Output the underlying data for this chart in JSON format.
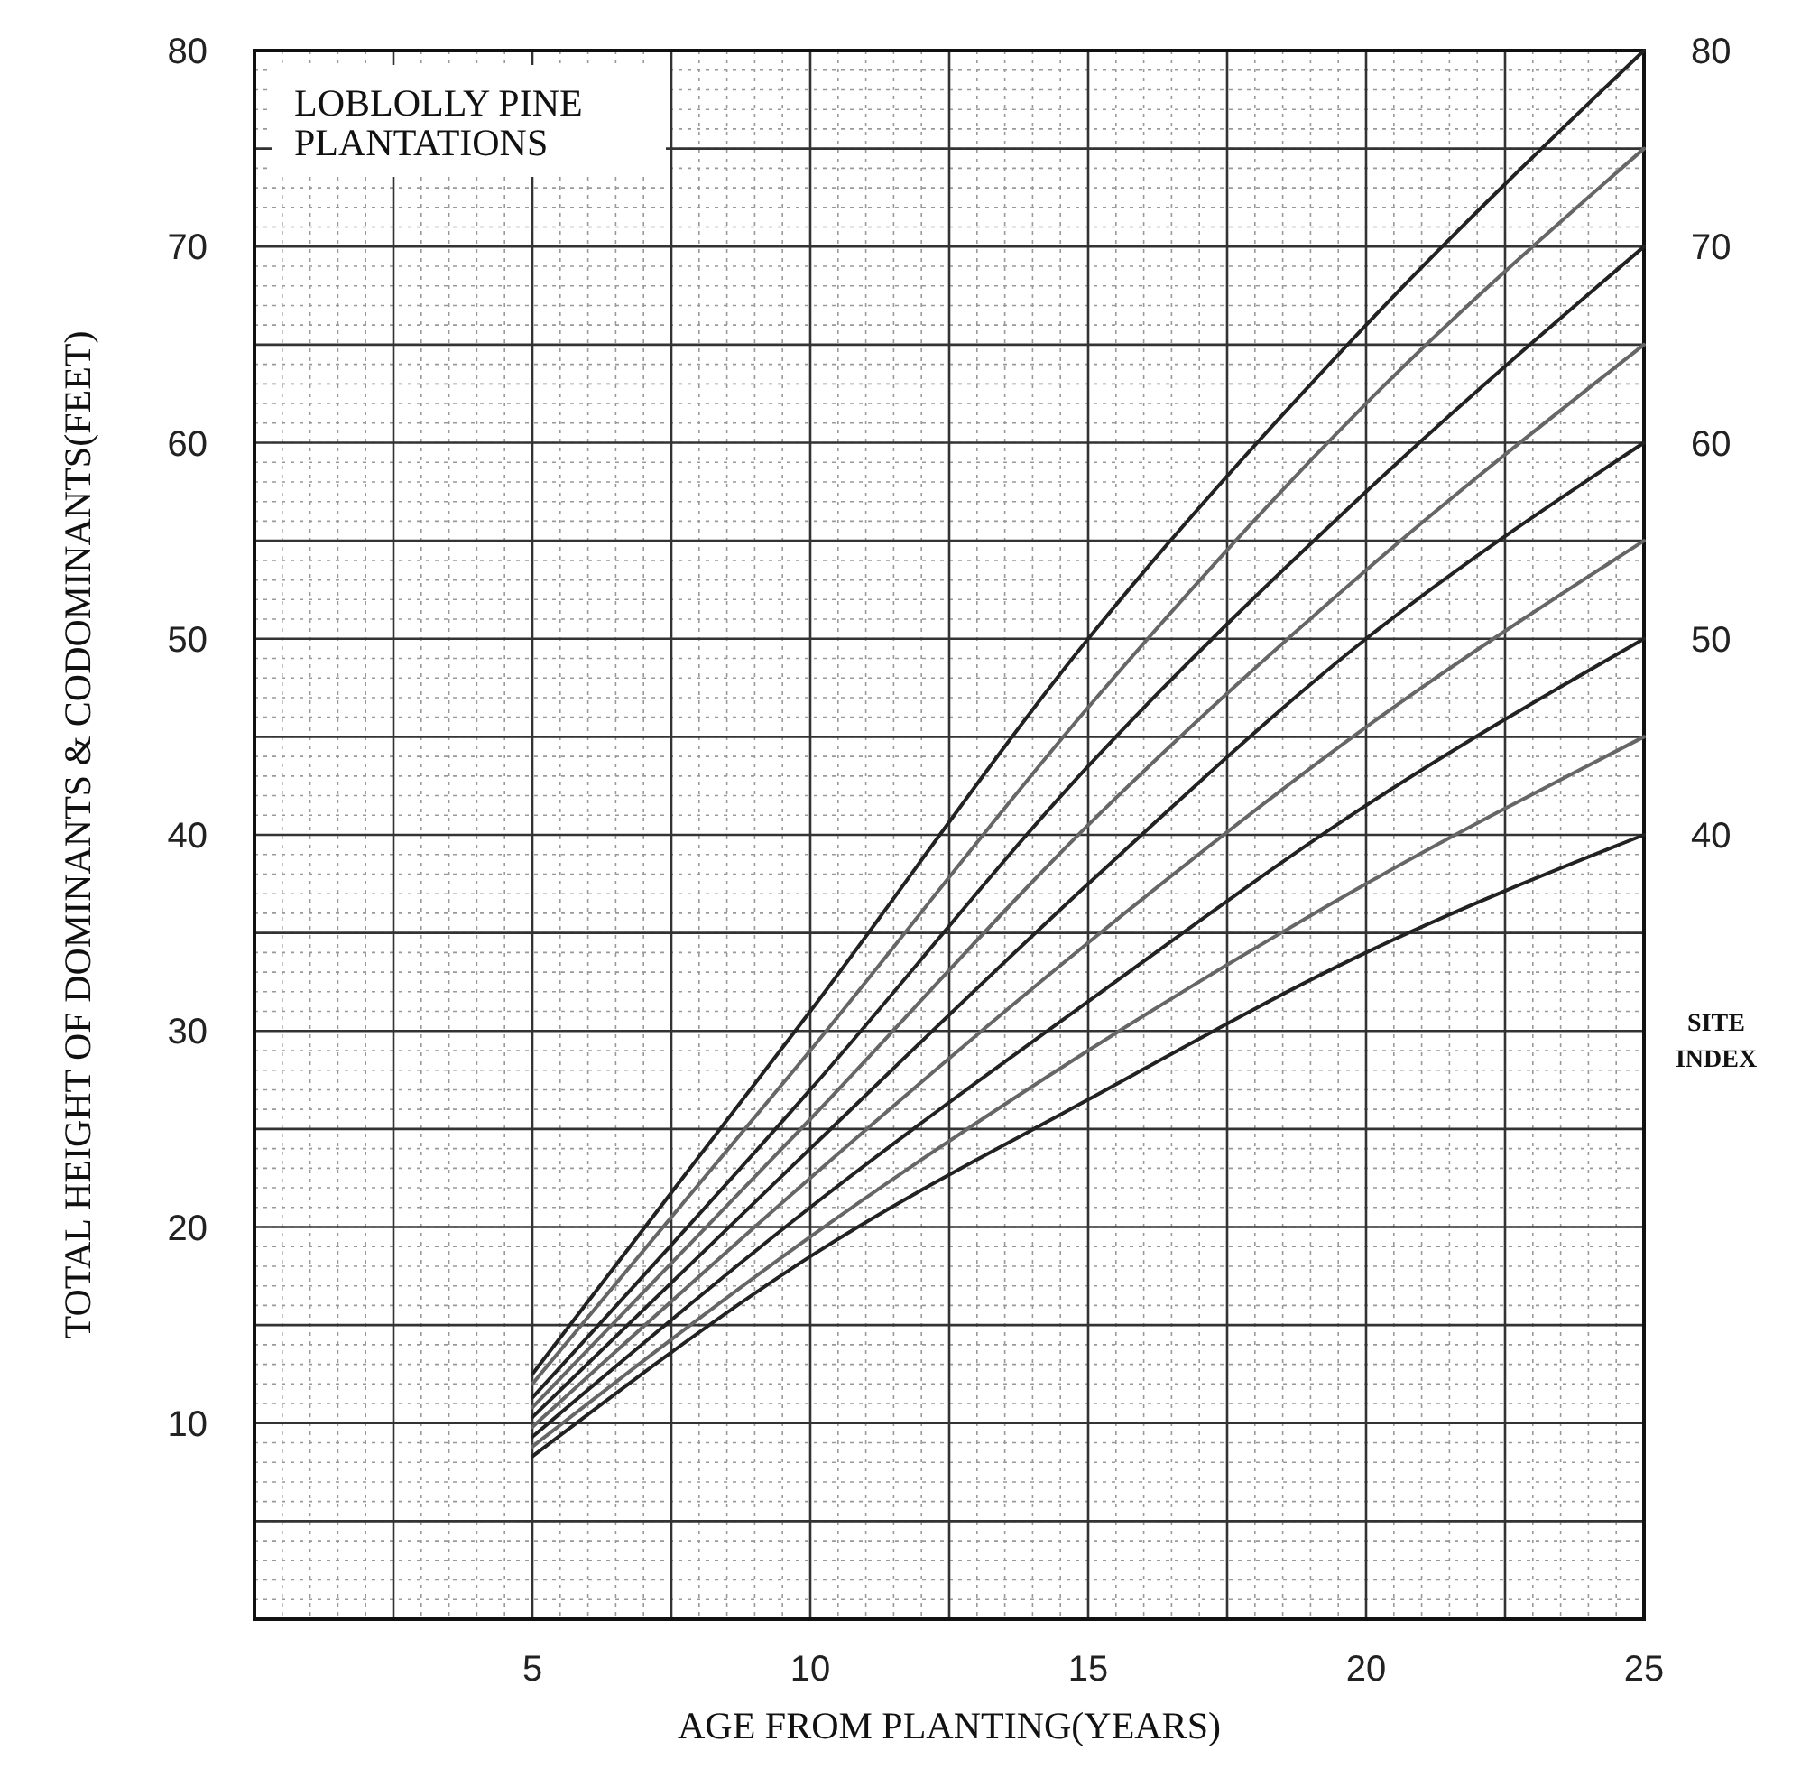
{
  "chart_data": {
    "type": "line",
    "title": "LOBLOLLY PINE\nPLANTATIONS",
    "xlabel": "AGE FROM PLANTING(YEARS)",
    "ylabel": "TOTAL HEIGHT OF DOMINANTS & CODOMINANTS(FEET)",
    "y2label": "SITE\nINDEX",
    "x": [
      5,
      10,
      15,
      20,
      25
    ],
    "xlim": [
      0,
      25
    ],
    "xticks": [
      5,
      10,
      15,
      20,
      25
    ],
    "ylim": [
      0,
      80
    ],
    "yticks": [
      10,
      20,
      30,
      40,
      50,
      60,
      70,
      80
    ],
    "y2lim": [
      0,
      80
    ],
    "y2ticks": [
      40,
      50,
      60,
      70,
      80
    ],
    "grid": true,
    "line_style": "solid",
    "series": [
      {
        "color": "#222222",
        "values": [
          12.5,
          31,
          50,
          66,
          80
        ]
      },
      {
        "color": "#666666",
        "values": [
          12,
          29,
          46.5,
          62,
          75
        ]
      },
      {
        "color": "#222222",
        "values": [
          11.3,
          27,
          43.5,
          57.5,
          70
        ]
      },
      {
        "color": "#666666",
        "values": [
          10.8,
          25.5,
          40.5,
          53.5,
          65
        ]
      },
      {
        "color": "#222222",
        "values": [
          10.3,
          24,
          37.5,
          50,
          60
        ]
      },
      {
        "color": "#666666",
        "values": [
          9.8,
          22.5,
          34.5,
          45.5,
          55
        ]
      },
      {
        "color": "#222222",
        "values": [
          9.3,
          21,
          31.5,
          41.5,
          50
        ]
      },
      {
        "color": "#666666",
        "values": [
          8.8,
          19.5,
          29,
          37.5,
          45
        ]
      },
      {
        "color": "#222222",
        "values": [
          8.3,
          18.5,
          26.5,
          34,
          40
        ]
      }
    ]
  }
}
